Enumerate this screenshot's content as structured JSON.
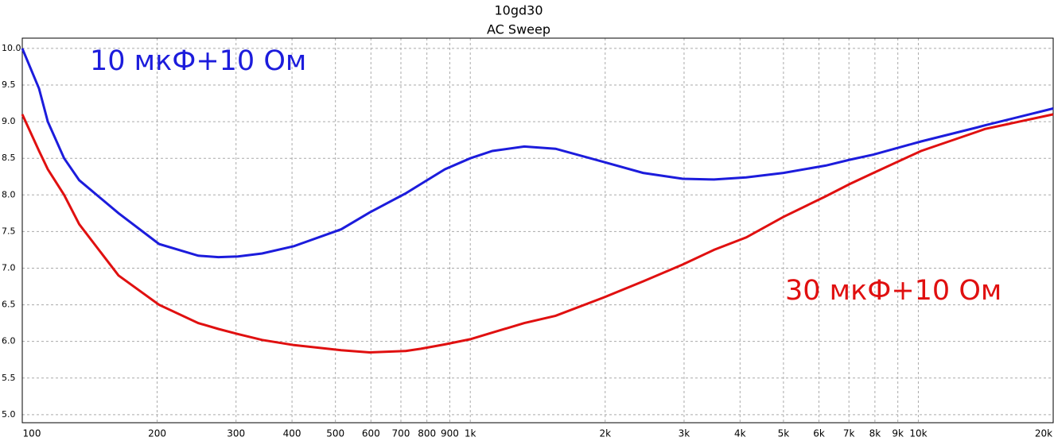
{
  "chart_data": {
    "type": "line",
    "title": "10gd30",
    "subtitle": "AC Sweep",
    "xscale": "log",
    "grid": true,
    "x": [
      100,
      109,
      114,
      124,
      134,
      164,
      202,
      247,
      274,
      303,
      343,
      404,
      515,
      596,
      717,
      776,
      878,
      1000,
      1120,
      1320,
      1550,
      1985,
      2430,
      2980,
      3500,
      4130,
      5000,
      6210,
      7035,
      7940,
      10140,
      13500,
      14090,
      20000
    ],
    "series": [
      {
        "name": "10 мкФ+10 Ом",
        "color": "#1c1cdc",
        "values": [
          10.0,
          9.45,
          9.0,
          8.5,
          8.2,
          7.75,
          7.33,
          7.17,
          7.15,
          7.16,
          7.2,
          7.3,
          7.53,
          7.76,
          8.02,
          8.15,
          8.35,
          8.5,
          8.6,
          8.66,
          8.63,
          8.45,
          8.3,
          8.22,
          8.21,
          8.24,
          8.3,
          8.4,
          8.48,
          8.55,
          8.73,
          8.92,
          8.95,
          9.18
        ]
      },
      {
        "name": "30 мкФ+10 Ом",
        "color": "#e01010",
        "values": [
          9.1,
          8.6,
          8.35,
          8.0,
          7.6,
          6.9,
          6.5,
          6.25,
          6.17,
          6.1,
          6.02,
          5.95,
          5.88,
          5.85,
          5.87,
          5.9,
          5.96,
          6.03,
          6.12,
          6.25,
          6.35,
          6.6,
          6.82,
          7.05,
          7.25,
          7.42,
          7.7,
          7.98,
          8.15,
          8.3,
          8.6,
          8.86,
          8.9,
          9.1
        ]
      }
    ],
    "xlim": [
      100,
      20000
    ],
    "xticks": [
      100,
      200,
      300,
      400,
      500,
      600,
      700,
      800,
      900,
      {
        "value": 1000,
        "label": "1k"
      },
      {
        "value": 2000,
        "label": "2k"
      },
      {
        "value": 3000,
        "label": "3k"
      },
      {
        "value": 4000,
        "label": "4k"
      },
      {
        "value": 5000,
        "label": "5k"
      },
      {
        "value": 6000,
        "label": "6k"
      },
      {
        "value": 7000,
        "label": "7k"
      },
      {
        "value": 8000,
        "label": "8k"
      },
      {
        "value": 9000,
        "label": "9k"
      },
      {
        "value": 10000,
        "label": "10k"
      },
      {
        "value": 20000,
        "label": "20k"
      }
    ],
    "ylim": [
      4.89,
      10.14
    ],
    "yticks": [
      {
        "value": 5,
        "label": "5.0"
      },
      {
        "value": 5.5,
        "label": "5.5"
      },
      {
        "value": 6,
        "label": "6.0"
      },
      {
        "value": 6.5,
        "label": "6.5"
      },
      {
        "value": 7,
        "label": "7.0"
      },
      {
        "value": 7.5,
        "label": "7.5"
      },
      {
        "value": 8,
        "label": "8.0"
      },
      {
        "value": 8.5,
        "label": "8.5"
      },
      {
        "value": 9,
        "label": "9.0"
      },
      {
        "value": 9.5,
        "label": "9.5"
      },
      {
        "value": 10,
        "label": "10.0"
      }
    ]
  }
}
